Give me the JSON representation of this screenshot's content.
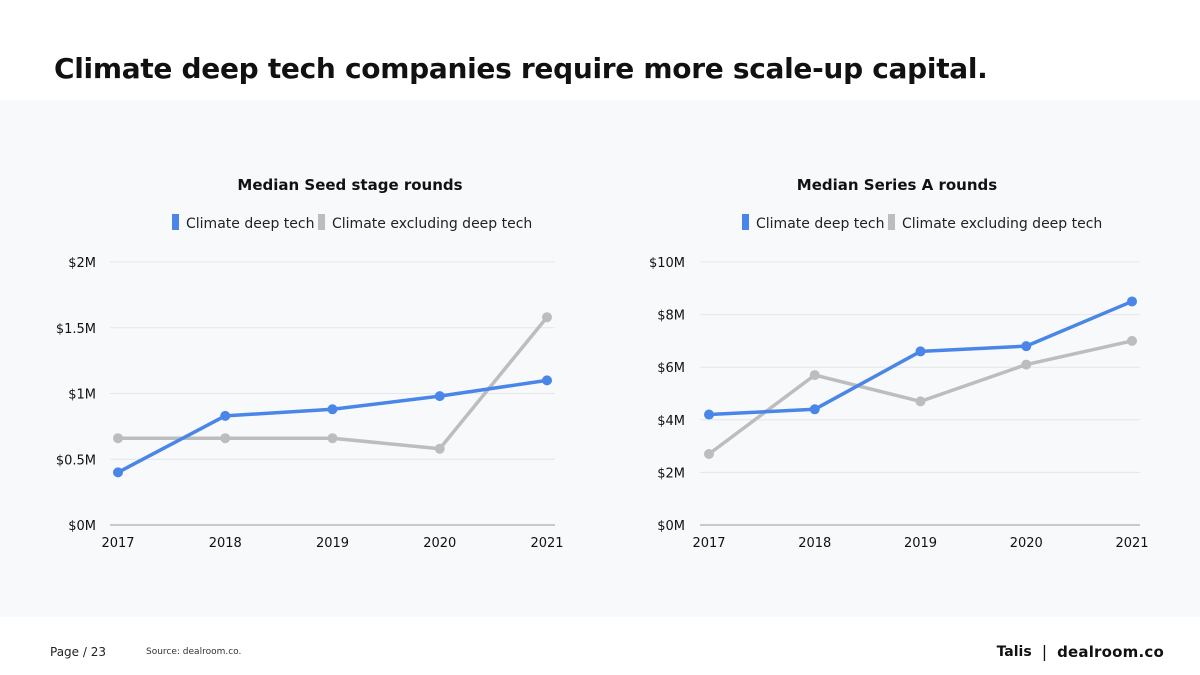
{
  "title": "Climate deep tech companies require more scale-up capital.",
  "footer": {
    "page_label": "Page",
    "page_number": "/ 23",
    "source": "Source: dealroom.co.",
    "brand_left": "Talis",
    "brand_separator": "|",
    "brand_right": "dealroom.co"
  },
  "colors": {
    "deep_tech": "#4a86e8",
    "excluding": "#bdbdbd"
  },
  "chart_data": [
    {
      "type": "line",
      "title": "Median Seed stage rounds",
      "x": [
        "2017",
        "2018",
        "2019",
        "2020",
        "2021"
      ],
      "y_ticks": [
        "$0M",
        "$0.5M",
        "$1M",
        "$1.5M",
        "$2M"
      ],
      "ylim": [
        0,
        2
      ],
      "unit": "$M",
      "legend_position": "top",
      "series": [
        {
          "name": "Climate deep tech",
          "values": [
            0.4,
            0.83,
            0.88,
            0.98,
            1.1
          ]
        },
        {
          "name": "Climate excluding deep tech",
          "values": [
            0.66,
            0.66,
            0.66,
            0.58,
            1.58
          ]
        }
      ]
    },
    {
      "type": "line",
      "title": "Median Series A rounds",
      "x": [
        "2017",
        "2018",
        "2019",
        "2020",
        "2021"
      ],
      "y_ticks": [
        "$0M",
        "$2M",
        "$4M",
        "$6M",
        "$8M",
        "$10M"
      ],
      "ylim": [
        0,
        10
      ],
      "unit": "$M",
      "legend_position": "top",
      "series": [
        {
          "name": "Climate deep tech",
          "values": [
            4.2,
            4.4,
            6.6,
            6.8,
            8.5
          ]
        },
        {
          "name": "Climate excluding deep tech",
          "values": [
            2.7,
            5.7,
            4.7,
            6.1,
            7.0
          ]
        }
      ]
    }
  ]
}
